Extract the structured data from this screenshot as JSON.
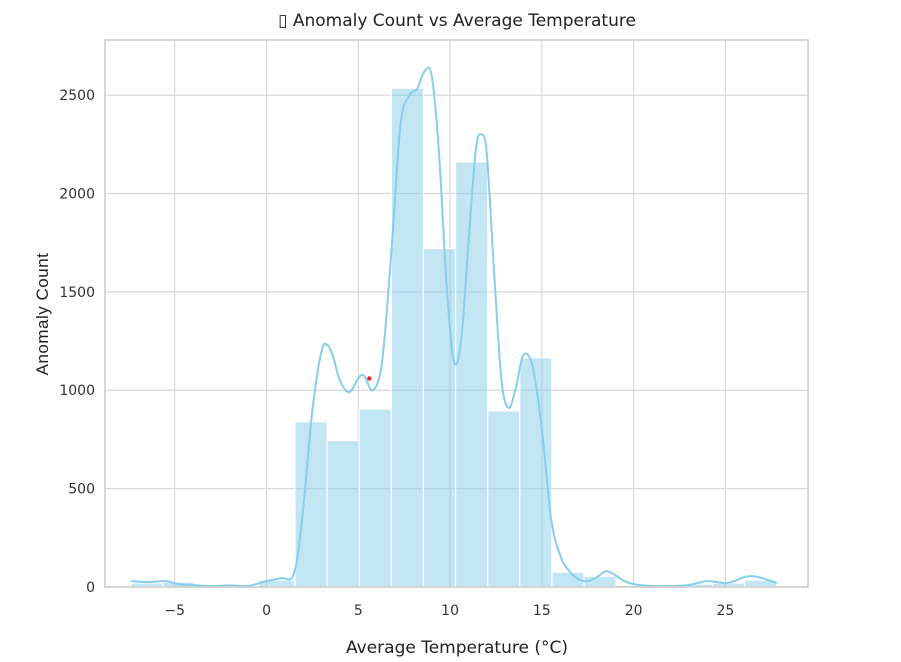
{
  "chart_data": {
    "type": "bar",
    "title": "▯ Anomaly Count vs Average Temperature",
    "xlabel": "Average Temperature (°C)",
    "ylabel": "Anomaly Count",
    "xlim": [
      -8.8,
      29.5
    ],
    "ylim": [
      0,
      2780
    ],
    "xticks": [
      -5,
      0,
      5,
      10,
      15,
      20,
      25
    ],
    "xtick_labels": [
      "−5",
      "0",
      "5",
      "10",
      "15",
      "20",
      "25"
    ],
    "yticks": [
      0,
      500,
      1000,
      1500,
      2000,
      2500
    ],
    "ytick_labels": [
      "0",
      "500",
      "1000",
      "1500",
      "2000",
      "2500"
    ],
    "grid": true,
    "bar_color": "#87ceeb",
    "kde_color": "#87ceeb",
    "bins": [
      {
        "x0": -7.4,
        "x1": -5.66,
        "value": 20
      },
      {
        "x0": -5.66,
        "x1": -3.92,
        "value": 25
      },
      {
        "x0": -3.92,
        "x1": -2.18,
        "value": 8
      },
      {
        "x0": -2.18,
        "x1": -0.44,
        "value": 5
      },
      {
        "x0": -0.44,
        "x1": 1.55,
        "value": 35
      },
      {
        "x0": 1.55,
        "x1": 3.3,
        "value": 840
      },
      {
        "x0": 3.3,
        "x1": 5.05,
        "value": 745
      },
      {
        "x0": 5.05,
        "x1": 6.8,
        "value": 905
      },
      {
        "x0": 6.8,
        "x1": 8.55,
        "value": 2535
      },
      {
        "x0": 8.55,
        "x1": 10.3,
        "value": 1720
      },
      {
        "x0": 10.3,
        "x1": 12.05,
        "value": 2160
      },
      {
        "x0": 12.05,
        "x1": 13.8,
        "value": 895
      },
      {
        "x0": 13.8,
        "x1": 15.55,
        "value": 1165
      },
      {
        "x0": 15.55,
        "x1": 17.3,
        "value": 75
      },
      {
        "x0": 17.3,
        "x1": 19.05,
        "value": 55
      },
      {
        "x0": 19.05,
        "x1": 20.8,
        "value": 10
      },
      {
        "x0": 20.8,
        "x1": 22.55,
        "value": 5
      },
      {
        "x0": 22.55,
        "x1": 24.3,
        "value": 15
      },
      {
        "x0": 24.3,
        "x1": 26.05,
        "value": 20
      },
      {
        "x0": 26.05,
        "x1": 27.8,
        "value": 35
      }
    ],
    "kde": {
      "x": [
        -7.4,
        -6.5,
        -5.5,
        -4.8,
        -4,
        -3,
        -2,
        -1,
        0,
        0.8,
        1.5,
        2.0,
        2.5,
        3.0,
        3.3,
        3.6,
        4.0,
        4.5,
        5.0,
        5.3,
        5.8,
        6.3,
        6.8,
        7.3,
        7.8,
        8.2,
        8.6,
        9.0,
        9.4,
        9.8,
        10.2,
        10.6,
        11.0,
        11.4,
        11.7,
        12.0,
        12.4,
        12.8,
        13.2,
        13.6,
        14.0,
        14.5,
        15.0,
        15.5,
        16.0,
        16.5,
        17.0,
        17.5,
        18.0,
        18.5,
        19.0,
        19.5,
        20.0,
        21.0,
        22.0,
        23.0,
        24.0,
        25.0,
        25.5,
        26.0,
        26.5,
        27.0,
        27.8
      ],
      "y": [
        30,
        25,
        30,
        15,
        10,
        5,
        8,
        5,
        30,
        45,
        70,
        400,
        900,
        1200,
        1230,
        1180,
        1050,
        990,
        1060,
        1075,
        1000,
        1150,
        1700,
        2350,
        2500,
        2530,
        2620,
        2600,
        2200,
        1550,
        1150,
        1250,
        1750,
        2220,
        2300,
        2200,
        1600,
        1050,
        910,
        1020,
        1180,
        1120,
        800,
        350,
        160,
        80,
        40,
        30,
        50,
        80,
        60,
        30,
        15,
        5,
        5,
        10,
        30,
        20,
        30,
        50,
        55,
        45,
        20
      ]
    },
    "marker": {
      "x": 5.6,
      "y": 1060,
      "color": "#e0203a"
    }
  }
}
